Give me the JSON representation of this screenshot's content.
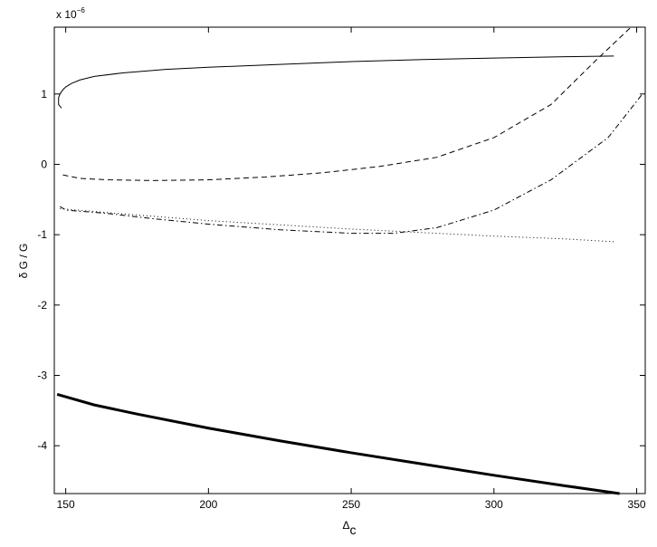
{
  "chart_data": {
    "type": "line",
    "x_label": "Δ",
    "x_label_subscript": "c",
    "y_label": "δ G / G",
    "y_multiplier": "x 10",
    "y_exponent": "−6",
    "xlim": [
      146,
      353
    ],
    "xticks": [
      150,
      200,
      250,
      300,
      350
    ],
    "ylim": [
      -4.68,
      1.95
    ],
    "yticks": [
      -4,
      -3,
      -2,
      -1,
      0,
      1
    ],
    "grid": false,
    "series": [
      {
        "color": "#000000",
        "style": "solid",
        "width": 1,
        "x": [
          148.5,
          147.5,
          147.5,
          148,
          149,
          150,
          152,
          155,
          160,
          170,
          185,
          200,
          225,
          250,
          275,
          300,
          325,
          342
        ],
        "values": [
          0.8,
          0.85,
          0.95,
          1.0,
          1.06,
          1.1,
          1.15,
          1.2,
          1.25,
          1.3,
          1.35,
          1.38,
          1.42,
          1.46,
          1.49,
          1.51,
          1.53,
          1.54
        ]
      },
      {
        "color": "#000000",
        "style": "dashed",
        "width": 1,
        "x": [
          149,
          155,
          165,
          180,
          200,
          220,
          240,
          260,
          280,
          300,
          320,
          335,
          348
        ],
        "values": [
          -0.15,
          -0.2,
          -0.22,
          -0.23,
          -0.22,
          -0.18,
          -0.12,
          -0.03,
          0.1,
          0.38,
          0.85,
          1.45,
          1.95
        ]
      },
      {
        "color": "#000000",
        "style": "dashdot",
        "width": 1,
        "x": [
          148,
          150,
          165,
          180,
          200,
          225,
          250,
          265,
          280,
          300,
          320,
          340,
          352
        ],
        "values": [
          -0.6,
          -0.65,
          -0.7,
          -0.77,
          -0.85,
          -0.93,
          -0.98,
          -0.98,
          -0.9,
          -0.65,
          -0.22,
          0.38,
          1.0
        ]
      },
      {
        "color": "#000000",
        "style": "dotted",
        "width": 1,
        "x": [
          148,
          160,
          175,
          200,
          225,
          250,
          275,
          300,
          325,
          342
        ],
        "values": [
          -0.63,
          -0.67,
          -0.72,
          -0.8,
          -0.86,
          -0.92,
          -0.97,
          -1.02,
          -1.06,
          -1.1
        ]
      },
      {
        "color": "#000000",
        "style": "solid",
        "width": 3,
        "x": [
          147,
          160,
          175,
          200,
          225,
          250,
          275,
          300,
          325,
          344
        ],
        "values": [
          -3.27,
          -3.42,
          -3.55,
          -3.75,
          -3.93,
          -4.1,
          -4.26,
          -4.42,
          -4.57,
          -4.68
        ]
      }
    ]
  }
}
